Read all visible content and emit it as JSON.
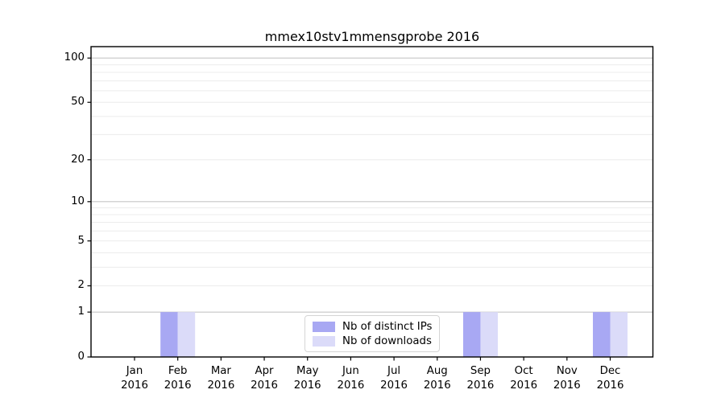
{
  "chart_data": {
    "type": "bar",
    "title": "mmex10stv1mmensgprobe 2016",
    "year": "2016",
    "months": [
      "Jan",
      "Feb",
      "Mar",
      "Apr",
      "May",
      "Jun",
      "Jul",
      "Aug",
      "Sep",
      "Oct",
      "Nov",
      "Dec"
    ],
    "categories": [
      "Jan 2016",
      "Feb 2016",
      "Mar 2016",
      "Apr 2016",
      "May 2016",
      "Jun 2016",
      "Jul 2016",
      "Aug 2016",
      "Sep 2016",
      "Oct 2016",
      "Nov 2016",
      "Dec 2016"
    ],
    "series": [
      {
        "name": "Nb of distinct IPs",
        "color": "#a8a8f3",
        "values": [
          0,
          1,
          0,
          0,
          0,
          0,
          0,
          0,
          1,
          0,
          0,
          1
        ]
      },
      {
        "name": "Nb of downloads",
        "color": "#dbdbf9",
        "values": [
          0,
          1,
          0,
          0,
          0,
          0,
          0,
          0,
          1,
          0,
          0,
          1
        ]
      }
    ],
    "y_axis": {
      "scale": "log10(1+y)",
      "ticks": [
        0,
        1,
        2,
        5,
        10,
        20,
        50,
        100
      ],
      "major_gridlines": [
        1,
        10,
        100
      ],
      "minor_gridlines": [
        2,
        3,
        4,
        5,
        6,
        7,
        8,
        9,
        20,
        30,
        40,
        50,
        60,
        70,
        80,
        90
      ],
      "top_value": 120
    },
    "legend": {
      "position": "lower center"
    },
    "grid": true,
    "colors": {
      "frame": "#000000",
      "major_grid": "#c6c6c6",
      "minor_grid": "#ececec",
      "text": "#000000"
    }
  }
}
